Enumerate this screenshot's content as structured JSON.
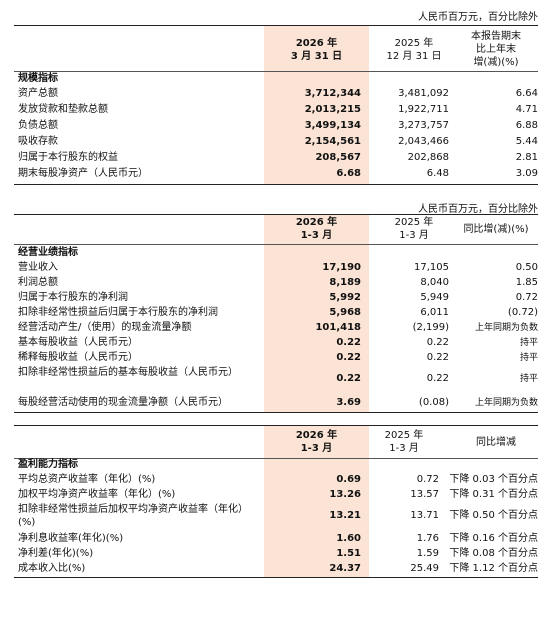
{
  "t1": {
    "unit": "人民币百万元，百分比除外",
    "col1": [
      "2026 年",
      "3 月 31 日"
    ],
    "col2": [
      "2025 年",
      "12 月 31 日"
    ],
    "col3": [
      "本报告期末",
      "比上年末",
      "增(减)(%)"
    ],
    "section": "规模指标",
    "rows": [
      {
        "label": "资产总额",
        "v1": "3,712,344",
        "v2": "3,481,092",
        "v3": "6.64"
      },
      {
        "label": "发放贷款和垫款总额",
        "v1": "2,013,215",
        "v2": "1,922,711",
        "v3": "4.71"
      },
      {
        "label": "负债总额",
        "v1": "3,499,134",
        "v2": "3,273,757",
        "v3": "6.88"
      },
      {
        "label": "吸收存款",
        "v1": "2,154,561",
        "v2": "2,043,466",
        "v3": "5.44"
      },
      {
        "label": "归属于本行股东的权益",
        "v1": "208,567",
        "v2": "202,868",
        "v3": "2.81"
      },
      {
        "label": "期末每股净资产（人民币元）",
        "v1": "6.68",
        "v2": "6.48",
        "v3": "3.09"
      }
    ]
  },
  "t2": {
    "unit": "人民币百万元，百分比除外",
    "col1": [
      "2026 年",
      "1-3 月"
    ],
    "col2": [
      "2025 年",
      "1-3 月"
    ],
    "col3": "同比增(减)(%)",
    "section": "经营业绩指标",
    "rows": [
      {
        "label": "营业收入",
        "v1": "17,190",
        "v2": "17,105",
        "v3": "0.50"
      },
      {
        "label": "利润总额",
        "v1": "8,189",
        "v2": "8,040",
        "v3": "1.85"
      },
      {
        "label": "归属于本行股东的净利润",
        "v1": "5,992",
        "v2": "5,949",
        "v3": "0.72"
      },
      {
        "label": "扣除非经常性损益后归属于本行股东的净利润",
        "v1": "5,968",
        "v2": "6,011",
        "v3": "(0.72)"
      },
      {
        "label": "经营活动产生/（使用）的现金流量净额",
        "v1": "101,418",
        "v2": "(2,199)",
        "v3": "上年同期为负数"
      },
      {
        "label": "基本每股收益（人民币元）",
        "v1": "0.22",
        "v2": "0.22",
        "v3": "持平"
      },
      {
        "label": "稀释每股收益（人民币元）",
        "v1": "0.22",
        "v2": "0.22",
        "v3": "持平"
      },
      {
        "label": "扣除非经常性损益后的基本每股收益（人民币元）",
        "v1": "0.22",
        "v2": "0.22",
        "v3": "持平"
      },
      {
        "label": "每股经营活动使用的现金流量净额（人民币元）",
        "v1": "3.69",
        "v2": "(0.08)",
        "v3": "上年同期为负数"
      }
    ]
  },
  "t3": {
    "col1": [
      "2026 年",
      "1-3 月"
    ],
    "col2": [
      "2025 年",
      "1-3 月"
    ],
    "col3": "同比增减",
    "section": "盈利能力指标",
    "rows": [
      {
        "label": "平均总资产收益率（年化）(%)",
        "v1": "0.69",
        "v2": "0.72",
        "v3": "下降 0.03 个百分点"
      },
      {
        "label": "加权平均净资产收益率（年化）(%)",
        "v1": "13.26",
        "v2": "13.57",
        "v3": "下降 0.31 个百分点"
      },
      {
        "label": "扣除非经常性损益后加权平均净资产收益率（年化）(%)",
        "v1": "13.21",
        "v2": "13.71",
        "v3": "下降 0.50 个百分点"
      },
      {
        "label": "净利息收益率(年化)(%)",
        "v1": "1.60",
        "v2": "1.76",
        "v3": "下降 0.16 个百分点"
      },
      {
        "label": "净利差(年化)(%)",
        "v1": "1.51",
        "v2": "1.59",
        "v3": "下降 0.08 个百分点"
      },
      {
        "label": "成本收入比(%)",
        "v1": "24.37",
        "v2": "25.49",
        "v3": "下降 1.12 个百分点"
      }
    ]
  }
}
